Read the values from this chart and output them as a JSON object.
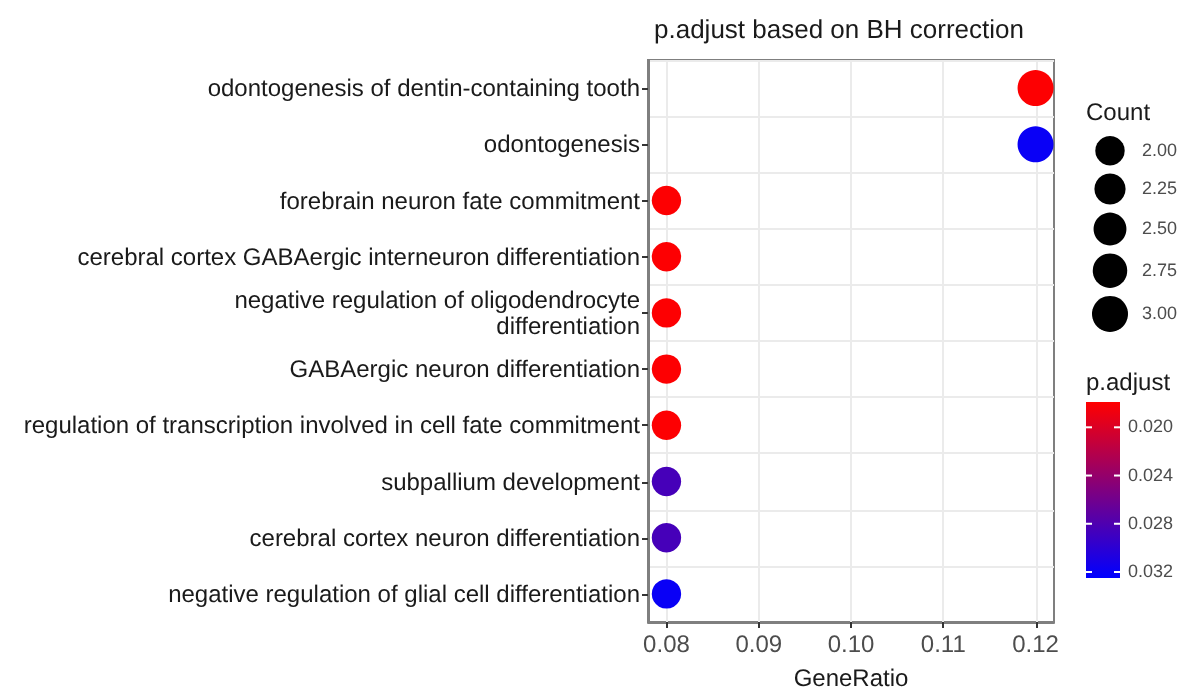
{
  "chart_data": {
    "type": "bubble",
    "orientation": "horizontal",
    "title": "p.adjust based on BH correction",
    "xlabel": "GeneRatio",
    "legend_title": "Count",
    "clabel": "p.adjust",
    "categories": [
      "odontogenesis of dentin-containing tooth",
      "odontogenesis",
      "forebrain neuron fate commitment",
      "cerebral cortex GABAergic interneuron differentiation",
      "negative regulation of oligodendrocyte\ndifferentiation",
      "GABAergic neuron differentiation",
      "regulation of transcription involved in cell fate commitment",
      "subpallium development",
      "cerebral cortex neuron differentiation",
      "negative regulation of glial cell differentiation"
    ],
    "values": [
      0.12,
      0.12,
      0.08,
      0.08,
      0.08,
      0.08,
      0.08,
      0.08,
      0.08,
      0.08
    ],
    "sizes": [
      3,
      3,
      2,
      2,
      2,
      2,
      2,
      2,
      2,
      2
    ],
    "cvalues": [
      0.018,
      0.032,
      0.018,
      0.018,
      0.018,
      0.018,
      0.018,
      0.0285,
      0.0285,
      0.032
    ],
    "size_legend": [
      {
        "value": 2,
        "label": "2.00"
      },
      {
        "value": 2.25,
        "label": "2.25"
      },
      {
        "value": 2.5,
        "label": "2.50"
      },
      {
        "value": 2.75,
        "label": "2.75"
      },
      {
        "value": 3,
        "label": "3.00"
      }
    ],
    "clim": [
      0.0179,
      0.0325
    ],
    "cticks": [
      {
        "value": 0.02,
        "label": "0.020"
      },
      0.024,
      0.028,
      0.032
    ],
    "xlim": [
      0.078,
      0.122
    ],
    "xticks": [
      0.08,
      0.09,
      {
        "value": 0.1,
        "label": "0.10"
      },
      0.11,
      0.12
    ],
    "grid": true,
    "marker": "circle"
  }
}
